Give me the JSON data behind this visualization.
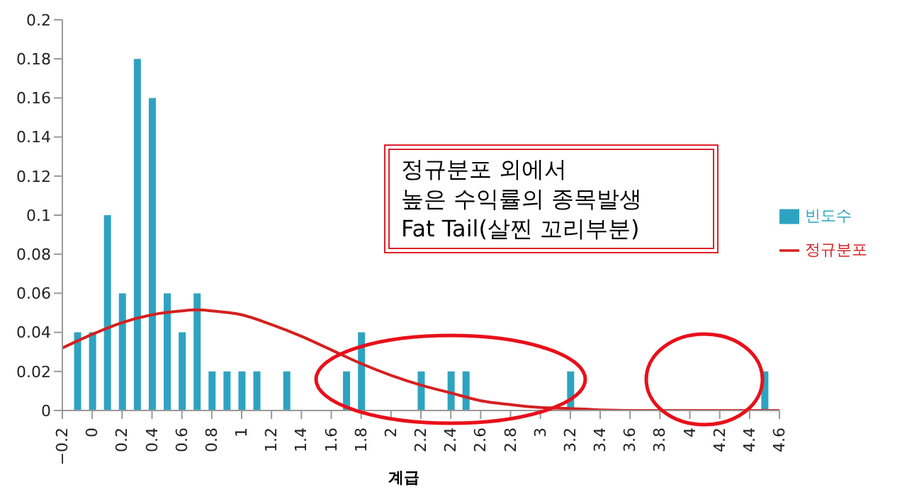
{
  "chart_data": {
    "type": "bar",
    "xlabel": "계급",
    "legend": "right",
    "grid": false,
    "annotations": [
      "정규분포 외에서\n높은 수익률의 종목발생\nFat Tail(살찐 꼬리부분)"
    ],
    "xlim": [
      -0.2,
      4.6
    ],
    "xticks": [
      -0.2,
      0,
      0.2,
      0.4,
      0.6,
      0.8,
      1,
      1.2,
      1.4,
      1.6,
      1.8,
      2,
      2.2,
      2.4,
      2.6,
      2.8,
      3,
      3.2,
      3.4,
      3.6,
      3.8,
      4,
      4.2,
      4.4,
      4.6
    ],
    "ylim": [
      0,
      0.2
    ],
    "yticks": [
      0,
      0.02,
      0.04,
      0.06,
      0.08,
      0.1,
      0.12,
      0.14,
      0.16,
      0.18,
      0.2
    ],
    "series": [
      {
        "name": "빈도수",
        "color": "#2ea3c1",
        "x": [
          -0.1,
          0,
          0.1,
          0.2,
          0.3,
          0.4,
          0.5,
          0.6,
          0.7,
          0.8,
          0.9,
          1,
          1.1,
          1.3,
          1.7,
          1.8,
          2.2,
          2.4,
          2.5,
          3.2,
          4.5
        ],
        "values": [
          0.04,
          0.04,
          0.1,
          0.06,
          0.18,
          0.16,
          0.06,
          0.04,
          0.06,
          0.02,
          0.02,
          0.02,
          0.02,
          0.02,
          0.02,
          0.04,
          0.02,
          0.02,
          0.02,
          0.02,
          0.02
        ]
      },
      {
        "name": "정규분포",
        "type": "line",
        "color": "#d42020",
        "marker": "none",
        "x": [
          -0.2,
          0,
          0.2,
          0.4,
          0.6,
          0.7,
          0.8,
          1,
          1.2,
          1.4,
          1.6,
          1.8,
          2,
          2.2,
          2.4,
          2.6,
          2.8,
          3,
          3.2,
          3.4,
          3.6,
          4,
          4.6
        ],
        "values": [
          0.032,
          0.039,
          0.045,
          0.049,
          0.051,
          0.0515,
          0.051,
          0.049,
          0.044,
          0.038,
          0.031,
          0.024,
          0.018,
          0.013,
          0.009,
          0.005,
          0.003,
          0.0015,
          0.001,
          0.0003,
          0,
          0,
          0
        ]
      }
    ]
  }
}
